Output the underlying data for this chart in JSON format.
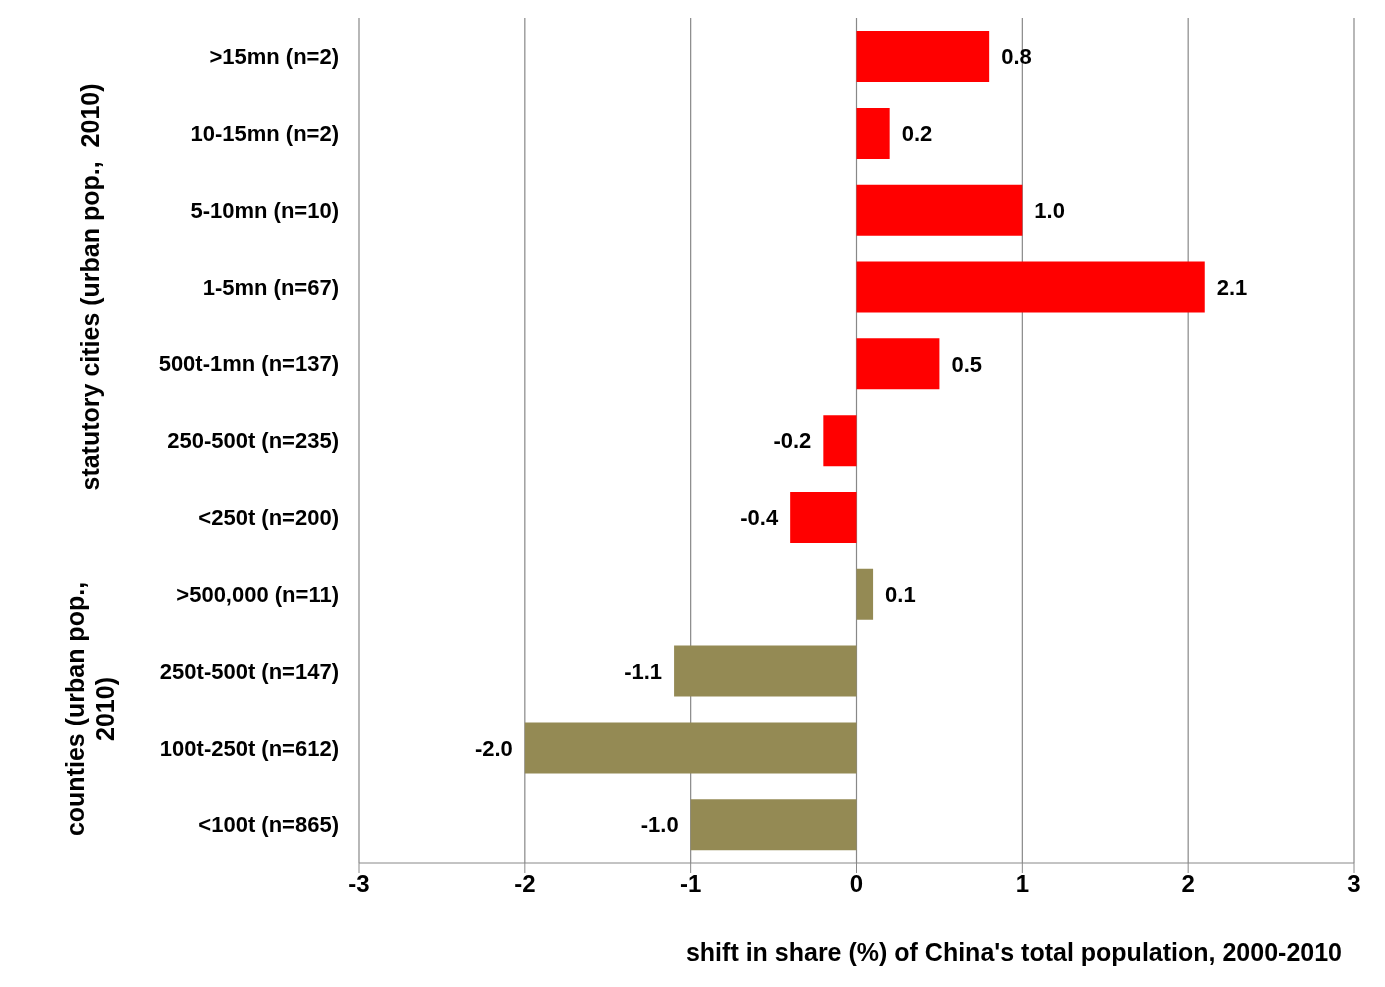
{
  "chart_data": {
    "type": "bar",
    "orientation": "horizontal",
    "xlabel": "shift in share (%) of China's total population, 2000-2010",
    "categories": [
      ">15mn (n=2)",
      "10-15mn (n=2)",
      "5-10mn (n=10)",
      "1-5mn (n=67)",
      "500t-1mn (n=137)",
      "250-500t (n=235)",
      "<250t (n=200)",
      ">500,000 (n=11)",
      "250t-500t (n=147)",
      "100t-250t (n=612)",
      "<100t (n=865)"
    ],
    "values": [
      0.8,
      0.2,
      1.0,
      2.1,
      0.5,
      -0.2,
      -0.4,
      0.1,
      -1.1,
      -2.0,
      -1.0
    ],
    "value_labels": [
      "0.8",
      "0.2",
      "1.0",
      "2.1",
      "0.5",
      "-0.2",
      "-0.4",
      "0.1",
      "-1.1",
      "-2.0",
      "-1.0"
    ],
    "colors": [
      "#ff0000",
      "#ff0000",
      "#ff0000",
      "#ff0000",
      "#ff0000",
      "#ff0000",
      "#ff0000",
      "#948a54",
      "#948a54",
      "#948a54",
      "#948a54"
    ],
    "xlim": [
      -3,
      3
    ],
    "xticks": [
      -3,
      -2,
      -1,
      0,
      1,
      2,
      3
    ],
    "grid": "x",
    "legend": false,
    "annotations": [
      "statutory cities (urban pop.,  2010)",
      "counties (urban pop., 2010)"
    ]
  }
}
